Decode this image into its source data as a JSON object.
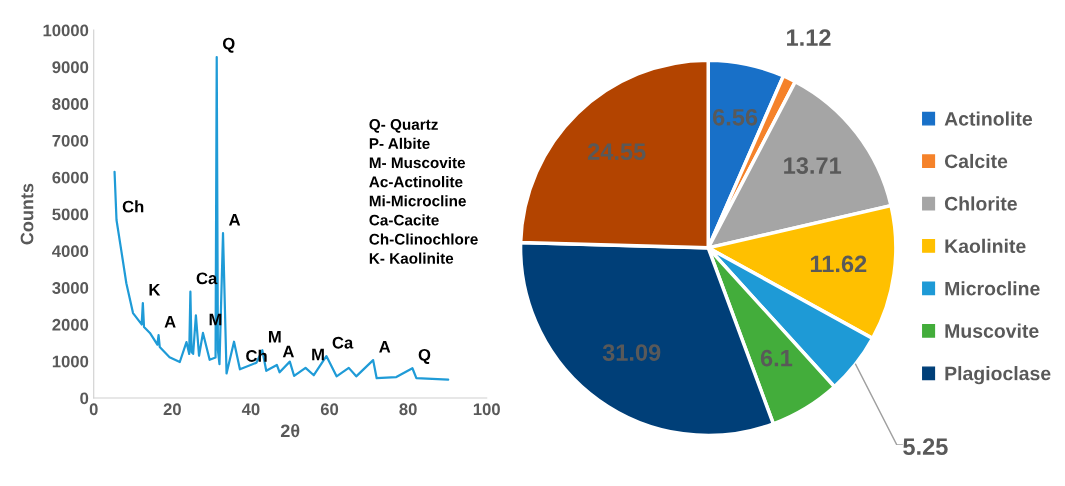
{
  "chart_data": [
    {
      "type": "line",
      "xlabel": "2θ",
      "ylabel": "Counts",
      "xlim": [
        0,
        100
      ],
      "ylim": [
        0,
        10000
      ],
      "xticks": [
        0,
        20,
        40,
        60,
        80,
        100
      ],
      "yticks": [
        0,
        1000,
        2000,
        3000,
        4000,
        5000,
        6000,
        7000,
        8000,
        9000,
        10000
      ],
      "grid": false,
      "legend": false,
      "marker": "none",
      "line_style": "solid",
      "series": [
        {
          "color": "#1f9bd7",
          "x": [
            5.3,
            5.8,
            7.0,
            8.3,
            10.0,
            12.2,
            12.5,
            12.8,
            14.3,
            16.2,
            16.5,
            16.8,
            19.3,
            21.9,
            23.6,
            24.3,
            24.6,
            24.9,
            25.3,
            26.0,
            26.8,
            27.8,
            29.5,
            31.0,
            31.3,
            31.6,
            32.0,
            32.9,
            33.8,
            35.7,
            37.2,
            41.4,
            42.9,
            43.9,
            46.6,
            47.3,
            49.9,
            51.0,
            53.9,
            56.0,
            59.2,
            61.8,
            64.9,
            66.8,
            71.1,
            72.0,
            77.0,
            81.1,
            82.1,
            90.2
          ],
          "values": [
            6150,
            4840,
            4020,
            3120,
            2310,
            2000,
            2580,
            1930,
            1770,
            1450,
            1710,
            1390,
            1110,
            980,
            1520,
            1200,
            2890,
            1250,
            1200,
            2250,
            1150,
            1770,
            1040,
            1100,
            9270,
            1300,
            920,
            4480,
            670,
            1530,
            780,
            960,
            1300,
            740,
            900,
            700,
            990,
            600,
            820,
            620,
            1140,
            590,
            820,
            590,
            1030,
            540,
            570,
            810,
            540,
            500
          ]
        }
      ],
      "annotations": [
        {
          "text": "Q",
          "x": 31.3,
          "y": 9270
        },
        {
          "text": "Ch",
          "x": 5.8,
          "y": 4840
        },
        {
          "text": "A",
          "x": 32.9,
          "y": 4480
        },
        {
          "text": "Ca",
          "x": 24.6,
          "y": 2890
        },
        {
          "text": "K",
          "x": 12.5,
          "y": 2580
        },
        {
          "text": "M",
          "x": 27.8,
          "y": 1770
        },
        {
          "text": "A",
          "x": 16.5,
          "y": 1710
        },
        {
          "text": "M",
          "x": 42.9,
          "y": 1300
        },
        {
          "text": "Ch",
          "x": 37.2,
          "y": 780
        },
        {
          "text": "A",
          "x": 46.6,
          "y": 900
        },
        {
          "text": "M",
          "x": 53.9,
          "y": 820
        },
        {
          "text": "Ca",
          "x": 59.2,
          "y": 1140
        },
        {
          "text": "A",
          "x": 71.1,
          "y": 1030
        },
        {
          "text": "Q",
          "x": 81.1,
          "y": 810
        },
        "Q- Quartz",
        "P- Albite",
        "M- Muscovite",
        "Ac-Actinolite",
        "Mi-Microcline",
        "Ca-Cacite",
        "Ch-Clinochlore",
        "K- Kaolinite"
      ]
    },
    {
      "type": "pie",
      "categories": [
        "Actinolite",
        "Calcite",
        "Chlorite",
        "Kaolinite",
        "Microcline",
        "Muscovite",
        "Plagioclase",
        null
      ],
      "values": [
        6.56,
        1.12,
        13.71,
        11.62,
        5.25,
        6.1,
        31.09,
        24.55
      ],
      "colors": [
        "#1870c8",
        "#f5822a",
        "#a5a5a5",
        "#ffc000",
        "#1e9ad6",
        "#43ad3b",
        "#003f78",
        "#b34400"
      ],
      "data_labels": true,
      "legend": "right"
    }
  ]
}
